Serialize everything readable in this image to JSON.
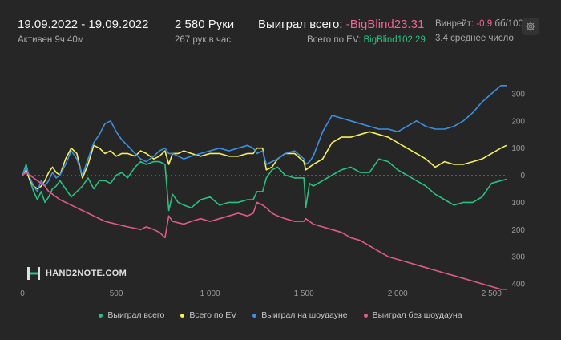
{
  "header": {
    "date_range": "19.09.2022 - 19.09.2022",
    "active": "Активен 9ч 40м",
    "hands": "2 580 Руки",
    "hands_per_hour": "267 рук в час",
    "won_total_label": "Выиграл всего:",
    "won_total_value": "-BigBlind23.31",
    "ev_label": "Всего по EV:",
    "ev_value": "BigBlind102.29",
    "winrate_label": "Винрейт:",
    "winrate_value": "-0.9",
    "winrate_unit": "бб/100",
    "avg_num": "3.4 среднее число"
  },
  "logo": {
    "text": "HAND2NOTE.COM"
  },
  "colors": {
    "won": "#26c281",
    "ev": "#f5f05a",
    "showdown": "#3d8fe0",
    "no_showdown": "#e05a86"
  },
  "chart_data": {
    "type": "line",
    "title": "",
    "xlabel": "",
    "ylabel": "",
    "xlim": [
      0,
      2580
    ],
    "ylim": [
      -400,
      350
    ],
    "y_ticks": [
      {
        "value": 300,
        "label": "300"
      },
      {
        "value": 200,
        "label": "200"
      },
      {
        "value": 100,
        "label": "100"
      },
      {
        "value": 0,
        "label": "0"
      },
      {
        "value": -100,
        "label": "100"
      },
      {
        "value": -200,
        "label": "200"
      },
      {
        "value": -300,
        "label": "300"
      },
      {
        "value": -400,
        "label": "400"
      }
    ],
    "x_ticks": [
      {
        "value": 0,
        "label": "0"
      },
      {
        "value": 500,
        "label": "500"
      },
      {
        "value": 1000,
        "label": "1 000"
      },
      {
        "value": 1500,
        "label": "1 500"
      },
      {
        "value": 2000,
        "label": "2 000"
      },
      {
        "value": 2500,
        "label": "2 500"
      }
    ],
    "grid": false,
    "legend_position": "bottom",
    "x": [
      0,
      20,
      40,
      60,
      80,
      100,
      120,
      140,
      160,
      180,
      200,
      230,
      260,
      290,
      320,
      350,
      380,
      410,
      440,
      470,
      500,
      530,
      560,
      600,
      630,
      660,
      700,
      730,
      760,
      780,
      800,
      830,
      860,
      900,
      950,
      1000,
      1050,
      1100,
      1150,
      1200,
      1230,
      1250,
      1280,
      1300,
      1330,
      1360,
      1400,
      1450,
      1500,
      1510,
      1530,
      1550,
      1600,
      1650,
      1700,
      1750,
      1800,
      1850,
      1900,
      1950,
      2000,
      2050,
      2100,
      2150,
      2200,
      2250,
      2300,
      2350,
      2400,
      2450,
      2500,
      2550,
      2580
    ],
    "series": [
      {
        "name": "Выиграл всего",
        "color_key": "won",
        "values": [
          0,
          40,
          -20,
          -60,
          -90,
          -60,
          -100,
          -80,
          -50,
          -40,
          -20,
          -50,
          -80,
          -60,
          -40,
          -10,
          -50,
          -20,
          -20,
          -30,
          0,
          10,
          -10,
          30,
          50,
          40,
          50,
          50,
          40,
          -130,
          -70,
          -100,
          -110,
          -120,
          -90,
          -80,
          -110,
          -100,
          -100,
          -90,
          -90,
          -60,
          -60,
          -10,
          20,
          30,
          0,
          -10,
          -10,
          -120,
          -30,
          -40,
          -20,
          0,
          20,
          30,
          10,
          10,
          60,
          50,
          20,
          0,
          -20,
          -40,
          -70,
          -90,
          -110,
          -100,
          -100,
          -80,
          -30,
          -20,
          -15
        ]
      },
      {
        "name": "Всего по EV",
        "color_key": "ev",
        "values": [
          0,
          20,
          -20,
          -40,
          -50,
          -40,
          -20,
          10,
          30,
          10,
          0,
          60,
          100,
          80,
          -10,
          40,
          110,
          100,
          80,
          90,
          70,
          80,
          80,
          70,
          90,
          80,
          60,
          70,
          90,
          40,
          80,
          80,
          90,
          80,
          70,
          80,
          80,
          70,
          70,
          80,
          80,
          100,
          100,
          20,
          30,
          60,
          80,
          80,
          50,
          20,
          30,
          40,
          60,
          120,
          140,
          140,
          150,
          160,
          150,
          140,
          120,
          100,
          80,
          60,
          30,
          50,
          40,
          40,
          50,
          60,
          80,
          100,
          110
        ]
      },
      {
        "name": "Выиграл на шоудауне",
        "color_key": "showdown",
        "values": [
          0,
          30,
          -10,
          -40,
          -60,
          -20,
          -40,
          -20,
          10,
          -10,
          0,
          40,
          90,
          60,
          0,
          60,
          120,
          150,
          190,
          200,
          160,
          130,
          110,
          80,
          60,
          50,
          70,
          90,
          100,
          80,
          80,
          70,
          60,
          70,
          80,
          90,
          100,
          90,
          100,
          110,
          100,
          80,
          90,
          40,
          50,
          60,
          80,
          90,
          60,
          40,
          50,
          70,
          160,
          220,
          210,
          200,
          190,
          180,
          170,
          170,
          160,
          180,
          200,
          180,
          170,
          170,
          180,
          200,
          230,
          270,
          300,
          330,
          330
        ]
      },
      {
        "name": "Выиграл без шоудауна",
        "color_key": "no_showdown",
        "values": [
          0,
          10,
          0,
          -10,
          -20,
          -30,
          -40,
          -60,
          -70,
          -80,
          -90,
          -100,
          -110,
          -120,
          -130,
          -140,
          -150,
          -160,
          -170,
          -175,
          -180,
          -185,
          -190,
          -195,
          -200,
          -190,
          -200,
          -210,
          -230,
          -150,
          -170,
          -175,
          -180,
          -170,
          -160,
          -170,
          -160,
          -150,
          -140,
          -150,
          -140,
          -100,
          -110,
          -120,
          -140,
          -150,
          -160,
          -170,
          -170,
          -160,
          -170,
          -180,
          -190,
          -200,
          -210,
          -230,
          -240,
          -260,
          -280,
          -300,
          -310,
          -320,
          -330,
          -340,
          -350,
          -360,
          -370,
          -380,
          -390,
          -400,
          -410,
          -420,
          -420
        ]
      }
    ]
  }
}
